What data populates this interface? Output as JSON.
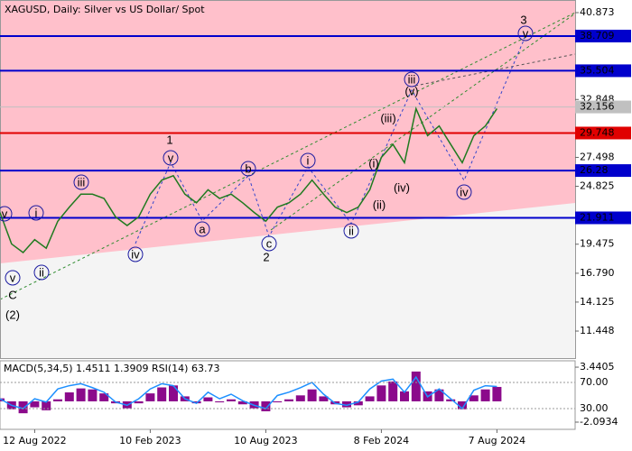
{
  "chart_data": {
    "type": "line",
    "title": "XAGUSD, Daily:  Silver vs US Dollar/ Spot",
    "categories": [
      null,
      null,
      null,
      "12 Aug 2022",
      null,
      null,
      null,
      null,
      null,
      null,
      null,
      null,
      null,
      "10 Feb 2023",
      null,
      null,
      null,
      null,
      null,
      null,
      null,
      null,
      null,
      "10 Aug 2023",
      null,
      null,
      null,
      null,
      null,
      null,
      null,
      null,
      null,
      "8 Feb 2024",
      null,
      null,
      null,
      null,
      null,
      null,
      null,
      null,
      null,
      "7 Aug 2024",
      null,
      null,
      null,
      null,
      null,
      null
    ],
    "values": [
      22.4,
      19.5,
      18.7,
      19.9,
      19.1,
      21.6,
      22.9,
      24.1,
      24.1,
      23.7,
      22.0,
      21.2,
      22.0,
      24.1,
      25.4,
      25.8,
      24.1,
      23.3,
      24.5,
      23.7,
      24.1,
      23.3,
      22.4,
      21.6,
      22.9,
      23.3,
      24.1,
      25.4,
      24.1,
      22.9,
      22.4,
      22.9,
      24.5,
      27.5,
      28.7,
      27.0,
      32.0,
      29.5,
      30.4,
      28.7,
      27.0,
      29.5,
      30.4,
      32.0,
      null,
      null,
      null,
      null,
      null,
      null
    ],
    "color": "#1f7a1f",
    "ylim": [
      8.95,
      42.04
    ],
    "yticks": [
      40.873,
      32.848,
      27.498,
      24.825,
      19.475,
      {
        "value": 16.79,
        "label": "16.790"
      },
      14.125,
      11.448
    ],
    "levels": [
      {
        "value": 38.709,
        "color": "#0000cc"
      },
      {
        "value": 35.504,
        "color": "#0000cc"
      },
      {
        "value": 29.748,
        "color": "#e00000"
      },
      {
        "value": 26.28,
        "color": "#0000cc"
      },
      {
        "value": 21.911,
        "color": "#0000cc"
      }
    ],
    "current_price": {
      "value": 32.156,
      "color": "#c0c0c0"
    },
    "annotations": [
      {
        "text": "1",
        "style": "plain",
        "color": "#c0392b"
      },
      {
        "text": "2",
        "style": "plain",
        "color": "#c0392b"
      },
      {
        "text": "3",
        "style": "plain",
        "color": "#c0392b"
      },
      {
        "text": "C",
        "style": "plain",
        "color": "#c0392b"
      },
      {
        "text": "(2)",
        "style": "plain",
        "color": "#1f8f1f"
      },
      {
        "text": "v",
        "style": "circle",
        "color": "#1a1aa0"
      },
      {
        "text": "i",
        "style": "circle",
        "color": "#1a1aa0"
      },
      {
        "text": "v",
        "style": "circle",
        "color": "#1a1aa0"
      },
      {
        "text": "ii",
        "style": "circle",
        "color": "#1a1aa0"
      },
      {
        "text": "iii",
        "style": "circle",
        "color": "#1a1aa0"
      },
      {
        "text": "iv",
        "style": "circle",
        "color": "#1a1aa0"
      },
      {
        "text": "v",
        "style": "circle",
        "color": "#1a1aa0"
      },
      {
        "text": "a",
        "style": "circle",
        "color": "#1a1aa0"
      },
      {
        "text": "b",
        "style": "circle",
        "color": "#1a1aa0"
      },
      {
        "text": "c",
        "style": "circle",
        "color": "#1a1aa0"
      },
      {
        "text": "i",
        "style": "circle",
        "color": "#1a1aa0"
      },
      {
        "text": "ii",
        "style": "circle",
        "color": "#1a1aa0"
      },
      {
        "text": "iii",
        "style": "circle",
        "color": "#1a1aa0"
      },
      {
        "text": "iv",
        "style": "circle",
        "color": "#1a1aa0"
      },
      {
        "text": "v",
        "style": "circle",
        "color": "#1a1aa0"
      },
      {
        "text": "(i)",
        "style": "plain",
        "color": "#c0392b"
      },
      {
        "text": "(ii)",
        "style": "plain",
        "color": "#c0392b"
      },
      {
        "text": "(iii)",
        "style": "plain",
        "color": "#c0392b"
      },
      {
        "text": "(iv)",
        "style": "plain",
        "color": "#c0392b"
      },
      {
        "text": "(v)",
        "style": "plain",
        "color": "#c0392b"
      }
    ],
    "indicator": {
      "label": "MACD(5,34,5) 1.4511 1.3909 RSI(14) 63.73",
      "macd_color": "#8b0a8b",
      "rsi_color": "#1e90ff",
      "macd_values": [
        0.3,
        -0.8,
        -1.2,
        -0.6,
        -0.9,
        0.2,
        0.9,
        1.3,
        1.2,
        0.8,
        -0.2,
        -0.7,
        -0.2,
        0.8,
        1.4,
        1.6,
        0.5,
        -0.2,
        0.4,
        -0.1,
        0.2,
        -0.3,
        -0.7,
        -1.0,
        -0.1,
        0.2,
        0.6,
        1.2,
        0.5,
        -0.3,
        -0.6,
        -0.4,
        0.5,
        1.6,
        2.0,
        1.0,
        3.0,
        1.0,
        1.2,
        0.2,
        -0.8,
        0.6,
        1.2,
        1.45
      ],
      "rsi_values": [
        45,
        35,
        30,
        45,
        40,
        60,
        65,
        68,
        62,
        55,
        40,
        35,
        45,
        60,
        68,
        65,
        45,
        38,
        55,
        45,
        52,
        42,
        35,
        30,
        50,
        55,
        62,
        70,
        52,
        38,
        35,
        40,
        60,
        72,
        75,
        55,
        78,
        48,
        60,
        45,
        30,
        58,
        65,
        63.73
      ],
      "macd_ylim": [
        -2.82,
        4.08
      ],
      "macd_ticks": [
        3.4405,
        -2.0934
      ],
      "rsi_ylim": [
        -1.7,
        103
      ],
      "rsi_ticks": [
        {
          "value": 70,
          "label": "70.00"
        },
        {
          "value": 30,
          "label": "30.00"
        }
      ]
    }
  }
}
